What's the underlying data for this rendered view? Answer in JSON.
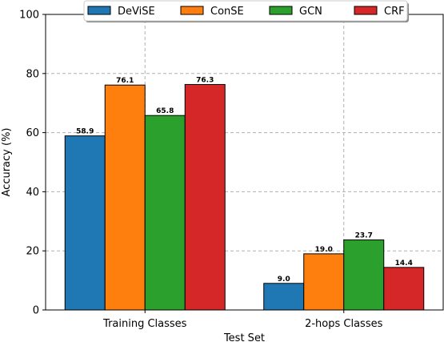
{
  "chart_data": {
    "type": "bar",
    "title": "",
    "xlabel": "Test Set",
    "ylabel": "Accuracy (%)",
    "ylim": [
      0,
      100
    ],
    "yticks": [
      0,
      20,
      40,
      60,
      80,
      100
    ],
    "grid": true,
    "legend_position": "top-center",
    "categories": [
      "Training Classes",
      "2-hops Classes"
    ],
    "series": [
      {
        "name": "DeViSE",
        "color": "#1f77b4",
        "values": [
          58.9,
          9.0
        ],
        "labels": [
          "58.9",
          "9.0"
        ]
      },
      {
        "name": "ConSE",
        "color": "#ff7f0e",
        "values": [
          76.1,
          19.0
        ],
        "labels": [
          "76.1",
          "19.0"
        ]
      },
      {
        "name": "GCN",
        "color": "#2ca02c",
        "values": [
          65.8,
          23.7
        ],
        "labels": [
          "65.8",
          "23.7"
        ]
      },
      {
        "name": "CRF",
        "color": "#d62728",
        "values": [
          76.3,
          14.4
        ],
        "labels": [
          "76.3",
          "14.4"
        ]
      }
    ]
  }
}
